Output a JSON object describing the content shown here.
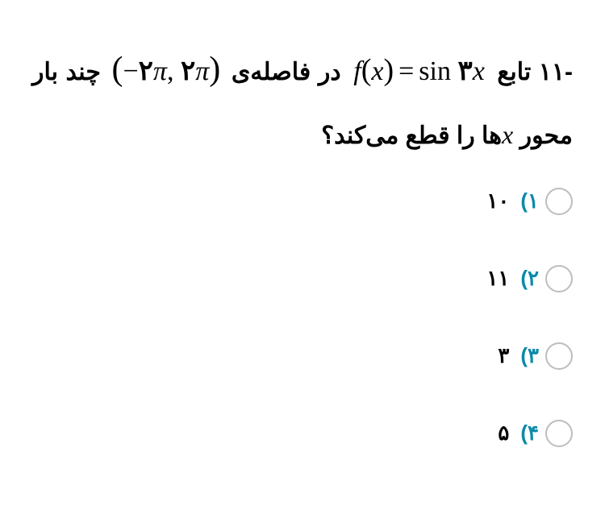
{
  "question": {
    "number": "-۱۱",
    "part1": "تابع",
    "formula": {
      "f": "f",
      "lp": "(",
      "x": "x",
      "rp": ")",
      "eq": "=",
      "sin": "sin",
      "coef": "۳",
      "xvar": "x"
    },
    "part2": "در فاصله‌ی",
    "interval": {
      "lp": "(",
      "neg": "−",
      "two1": "۲",
      "pi1": "π",
      "comma": ",",
      "two2": "۲",
      "pi2": "π",
      "rp": ")"
    },
    "part3_a": "چند بار محور",
    "xvar": "x",
    "part3_b": "ها را قطع می‌کند؟"
  },
  "options": [
    {
      "num": "۱)",
      "val": "۱۰"
    },
    {
      "num": "۲)",
      "val": "۱۱"
    },
    {
      "num": "۳)",
      "val": "۳"
    },
    {
      "num": "۴)",
      "val": "۵"
    }
  ],
  "colors": {
    "accent": "#0a8aa8",
    "text": "#000000",
    "radio_border": "#bdbdbd",
    "background": "#ffffff"
  }
}
